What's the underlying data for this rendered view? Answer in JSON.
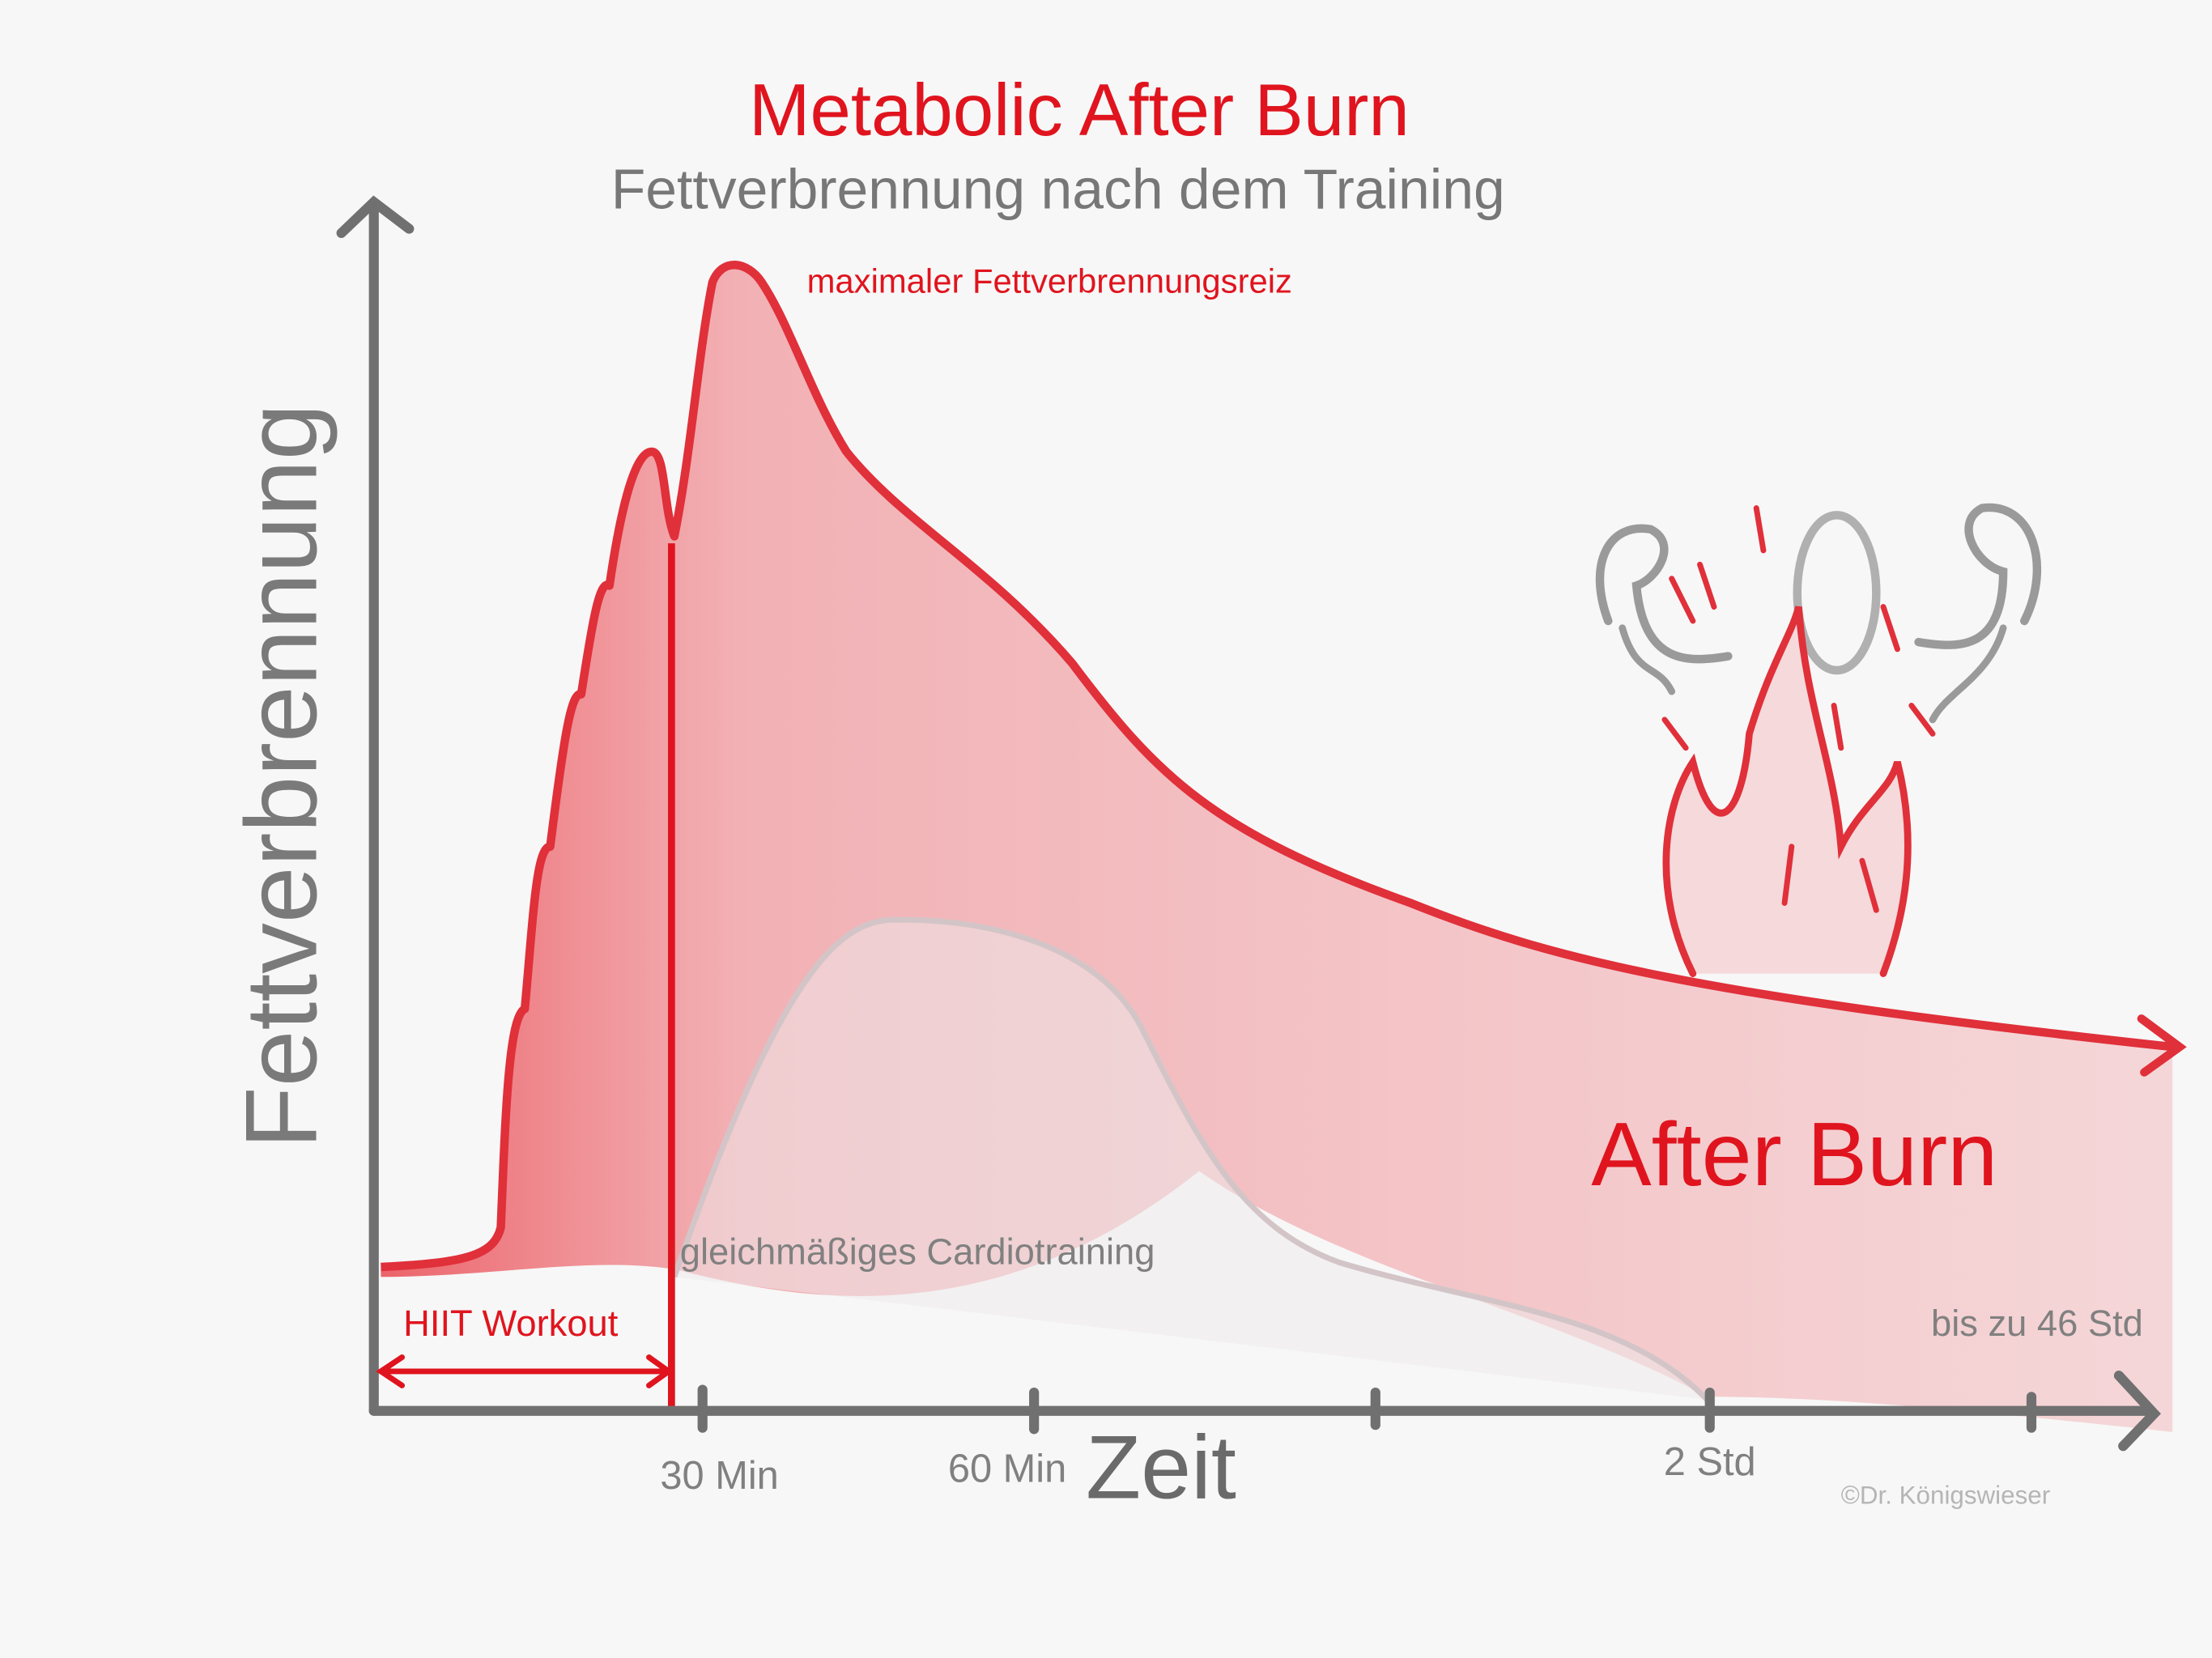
{
  "header": {
    "title": "Metabolic After Burn",
    "subtitle": "Fettverbrennung nach dem Training"
  },
  "axes": {
    "y_label": "Fettverbrennung",
    "x_label": "Zeit",
    "x_ticks": [
      "30 Min",
      "60 Min",
      "2 Std"
    ],
    "x_end_label": "bis zu 46 Std"
  },
  "annotations": {
    "peak": "maximaler Fettverbrennungsreiz",
    "hiit": "HIIT Workout",
    "cardio": "gleichmäßiges Cardiotraining",
    "after_burn": "After Burn"
  },
  "credit": "©Dr. Königswieser"
}
